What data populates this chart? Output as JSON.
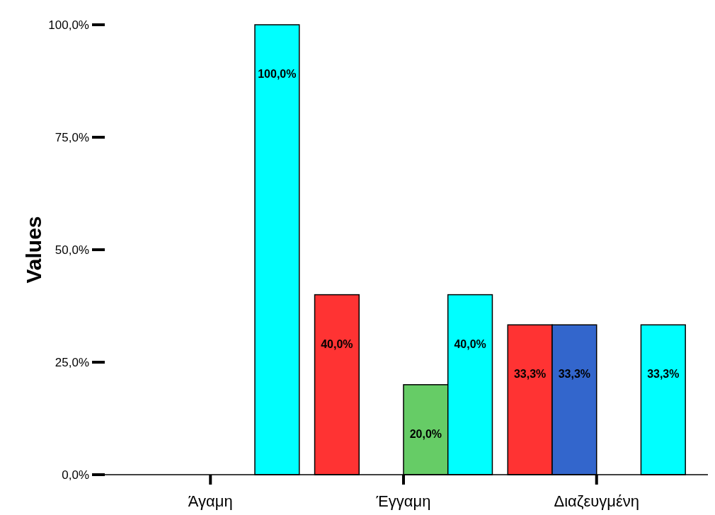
{
  "chart_data": {
    "type": "bar",
    "ylabel": "Values",
    "categories": [
      "Άγαμη",
      "Έγγαμη",
      "Διαζευγμένη"
    ],
    "series": [
      {
        "color": "#ff3333",
        "values": [
          null,
          40,
          33.3
        ],
        "value_labels": [
          null,
          "40,0%",
          "33,3%"
        ]
      },
      {
        "color": "#3366cc",
        "values": [
          null,
          null,
          33.3
        ],
        "value_labels": [
          null,
          null,
          "33,3%"
        ]
      },
      {
        "color": "#66cc66",
        "values": [
          null,
          20,
          null
        ],
        "value_labels": [
          null,
          "20,0%",
          null
        ]
      },
      {
        "color": "#00ffff",
        "values": [
          100,
          40,
          33.3
        ],
        "value_labels": [
          "100,0%",
          "40,0%",
          "33,3%"
        ]
      }
    ],
    "ylim": [
      0,
      100
    ],
    "yticks": [
      {
        "value": 0,
        "label": "0,0%"
      },
      {
        "value": 25,
        "label": "25,0%"
      },
      {
        "value": 50,
        "label": "50,0%"
      },
      {
        "value": 75,
        "label": "75,0%"
      },
      {
        "value": 100,
        "label": "100,0%"
      }
    ],
    "grid": false
  }
}
